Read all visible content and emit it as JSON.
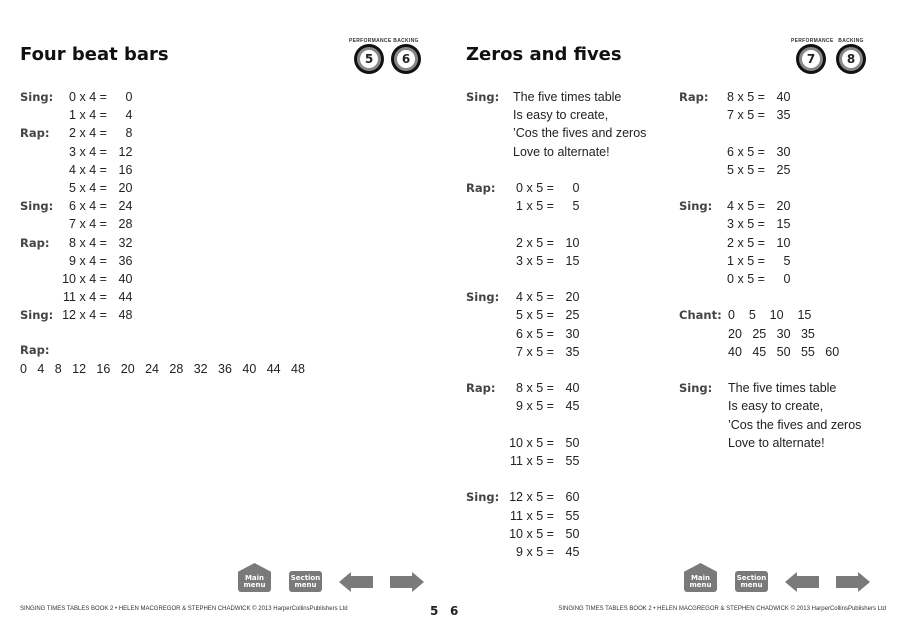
{
  "left_page": {
    "title": "Four beat bars",
    "badges": [
      {
        "label": "PERFORMANCE",
        "number": "5"
      },
      {
        "label": "BACKING",
        "number": "6"
      }
    ],
    "blocks": [
      {
        "label": "Sing:",
        "lines": [
          "0 x 4 = 0",
          "1 x 4 = 4"
        ]
      },
      {
        "label": "Rap:",
        "lines": [
          "2 x 4 = 8",
          "3 x 4 = 12",
          "4 x 4 = 16",
          "5 x 4 = 20"
        ]
      },
      {
        "label": "Sing:",
        "lines": [
          "6 x 4 = 24",
          "7 x 4 = 28"
        ]
      },
      {
        "label": "Rap:",
        "lines": [
          "8 x 4 = 32",
          "9 x 4 = 36",
          "10 x 4 = 40",
          "11 x 4 = 44"
        ]
      },
      {
        "label": "Sing:",
        "lines": [
          "12 x 4 = 48"
        ]
      }
    ],
    "rap_label": "Rap:",
    "rap_numbers": "0   4   8   12   16   20   24   28   32   36   40   44   48",
    "page_number": "5",
    "footer": "SINGING TIMES TABLES BOOK 2 • HELEN MACGREGOR & STEPHEN CHADWICK © 2013 HarperCollinsPublishers Ltd"
  },
  "right_page": {
    "title": "Zeros and fives",
    "badges": [
      {
        "label": "PERFORMANCE",
        "number": "7"
      },
      {
        "label": "BACKING",
        "number": "8"
      }
    ],
    "col1": [
      {
        "label": "Sing:",
        "lines": [
          "The five times table",
          "Is easy to create,",
          "’Cos the fives and zeros",
          "Love to alternate!"
        ]
      },
      {
        "label": "Rap:",
        "lines": [
          "0 x 5 = 0",
          "1 x 5 = 5",
          "",
          "2 x 5 = 10",
          "3 x 5 = 15"
        ]
      },
      {
        "label": "Sing:",
        "lines": [
          "4 x 5 = 20",
          "5 x 5 = 25",
          "6 x 5 = 30",
          "7 x 5 = 35"
        ]
      },
      {
        "label": "Rap:",
        "lines": [
          "8 x 5 = 40",
          "9 x 5 = 45",
          "",
          "10 x 5 = 50",
          "11 x 5 = 55"
        ]
      },
      {
        "label": "Sing:",
        "lines": [
          "12 x 5 = 60",
          "11 x 5 = 55",
          "10 x 5 = 50",
          "9 x 5 = 45"
        ]
      }
    ],
    "col2": [
      {
        "label": "Rap:",
        "lines": [
          "8 x 5 = 40",
          "7 x 5 = 35",
          "",
          "6 x 5 = 30",
          "5 x 5 = 25"
        ]
      },
      {
        "label": "Sing:",
        "lines": [
          "4 x 5 = 20",
          "3 x 5 = 15",
          "2 x 5 = 10",
          "1 x 5 = 5",
          "0 x 5 = 0"
        ]
      },
      {
        "label": "Chant:",
        "lines": [
          "0    5    10    15",
          "20   25   30   35",
          "40   45   50   55   60"
        ]
      },
      {
        "label": "Sing:",
        "lines": [
          "The five times table",
          "Is easy to create,",
          "’Cos the fives and zeros",
          "Love to alternate!"
        ]
      }
    ],
    "page_number": "6",
    "footer": "SINGING TIMES TABLES BOOK 2 • HELEN MACGREGOR & STEPHEN CHADWICK © 2013 HarperCollinsPublishers Ltd"
  },
  "nav": {
    "main_menu": [
      "Main",
      "menu"
    ],
    "section_menu": [
      "Section",
      "menu"
    ],
    "prev_icon": "arrow-left",
    "next_icon": "arrow-right"
  }
}
